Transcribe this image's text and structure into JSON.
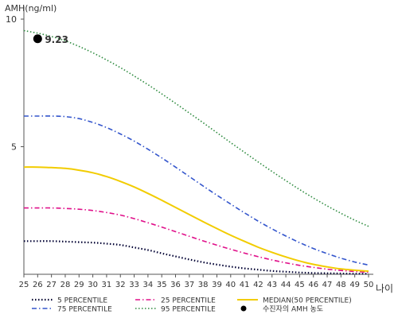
{
  "chart_data": {
    "type": "line",
    "ylabel": "AMH(ng/ml)",
    "xlabel": "나이",
    "x": [
      25,
      26,
      27,
      28,
      29,
      30,
      31,
      32,
      33,
      34,
      35,
      36,
      37,
      38,
      39,
      40,
      41,
      42,
      43,
      44,
      45,
      46,
      47,
      48,
      49,
      50
    ],
    "xlim": [
      25,
      50
    ],
    "ylim": [
      0,
      10.5
    ],
    "y_ticks": [
      5,
      10
    ],
    "grid": false,
    "legend_position": "bottom",
    "series": [
      {
        "key": "p5",
        "name": "5 PERCENTILE",
        "color": "#000033",
        "dash": "1.5 2.5",
        "width": 2.2,
        "values": [
          1.3,
          1.3,
          1.3,
          1.28,
          1.26,
          1.24,
          1.2,
          1.15,
          1.05,
          0.95,
          0.82,
          0.7,
          0.58,
          0.47,
          0.38,
          0.3,
          0.23,
          0.18,
          0.13,
          0.1,
          0.07,
          0.05,
          0.04,
          0.03,
          0.02,
          0.02
        ]
      },
      {
        "key": "p25",
        "name": "25 PERCENTILE",
        "color": "#e0108a",
        "dash": "6 3 1.5 3",
        "width": 1.6,
        "values": [
          2.6,
          2.6,
          2.6,
          2.58,
          2.55,
          2.5,
          2.42,
          2.32,
          2.18,
          2.02,
          1.85,
          1.67,
          1.49,
          1.31,
          1.14,
          0.98,
          0.83,
          0.69,
          0.56,
          0.45,
          0.35,
          0.27,
          0.2,
          0.15,
          0.11,
          0.08
        ]
      },
      {
        "key": "p50",
        "name": "MEDIAN(50 PERCENTILE)",
        "color": "#f2cc00",
        "dash": "",
        "width": 2.0,
        "values": [
          4.2,
          4.2,
          4.18,
          4.15,
          4.08,
          3.98,
          3.83,
          3.64,
          3.42,
          3.17,
          2.9,
          2.62,
          2.34,
          2.06,
          1.79,
          1.53,
          1.29,
          1.06,
          0.86,
          0.68,
          0.52,
          0.39,
          0.29,
          0.21,
          0.16,
          0.12
        ]
      },
      {
        "key": "p75",
        "name": "75 PERCENTILE",
        "color": "#3355cc",
        "dash": "6 3 1.5 3",
        "width": 1.6,
        "values": [
          6.2,
          6.2,
          6.2,
          6.18,
          6.1,
          5.95,
          5.75,
          5.5,
          5.22,
          4.9,
          4.56,
          4.2,
          3.83,
          3.46,
          3.1,
          2.75,
          2.41,
          2.08,
          1.78,
          1.5,
          1.24,
          1.01,
          0.81,
          0.63,
          0.48,
          0.36
        ]
      },
      {
        "key": "p95",
        "name": "95 PERCENTILE",
        "color": "#2d8a3e",
        "dash": "1.5 2.5",
        "width": 1.6,
        "values": [
          9.55,
          9.45,
          9.32,
          9.15,
          8.93,
          8.68,
          8.4,
          8.1,
          7.77,
          7.43,
          7.07,
          6.7,
          6.32,
          5.94,
          5.55,
          5.16,
          4.78,
          4.4,
          4.03,
          3.67,
          3.32,
          2.99,
          2.68,
          2.39,
          2.12,
          1.88
        ]
      }
    ],
    "point": {
      "name": "수진자의 AMH 농도",
      "x": 26,
      "y": 9.23,
      "label": "9.23",
      "color": "#000000"
    },
    "legend": [
      {
        "key": "p5",
        "label": "5 PERCENTILE",
        "col": 0,
        "row": 0
      },
      {
        "key": "p25",
        "label": "25 PERCENTILE",
        "col": 1,
        "row": 0
      },
      {
        "key": "p50",
        "label": "MEDIAN(50 PERCENTILE)",
        "col": 2,
        "row": 0
      },
      {
        "key": "p75",
        "label": "75 PERCENTILE",
        "col": 0,
        "row": 1
      },
      {
        "key": "p95",
        "label": "95 PERCENTILE",
        "col": 1,
        "row": 1
      },
      {
        "key": "point",
        "label": "수진자의 AMH 농도",
        "col": 2,
        "row": 1
      }
    ]
  }
}
